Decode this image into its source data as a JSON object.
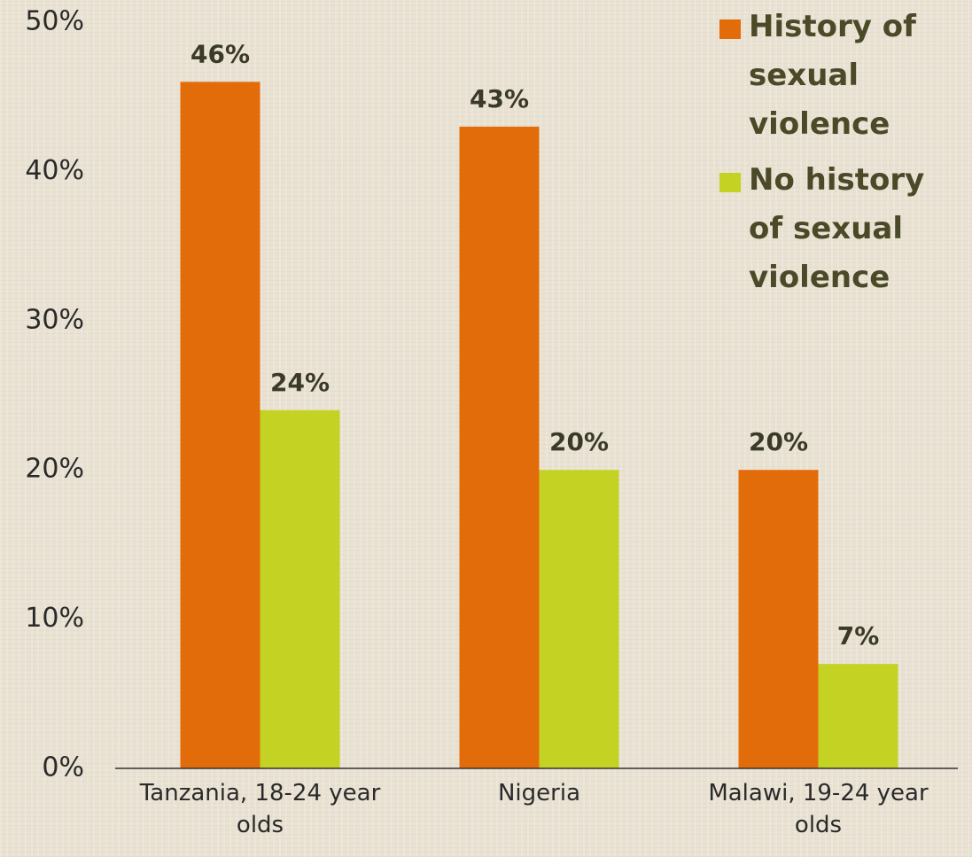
{
  "chart_data": {
    "type": "bar",
    "categories": [
      "Tanzania, 18-24 year olds",
      "Nigeria",
      "Malawi, 19-24 year olds"
    ],
    "series": [
      {
        "name": "History of sexual violence",
        "color": "#e36c0a",
        "values": [
          46,
          43,
          20
        ],
        "value_labels": [
          "46%",
          "43%",
          "20%"
        ]
      },
      {
        "name": "No history of sexual violence",
        "color": "#c4d323",
        "values": [
          24,
          20,
          7
        ],
        "value_labels": [
          "24%",
          "20%",
          "7%"
        ]
      }
    ],
    "ylim": [
      0,
      50
    ],
    "yticks": [
      {
        "value": 0,
        "label": "0%"
      },
      {
        "value": 10,
        "label": "10%"
      },
      {
        "value": 20,
        "label": "20%"
      },
      {
        "value": 30,
        "label": "30%"
      },
      {
        "value": 40,
        "label": "40%"
      },
      {
        "value": 50,
        "label": "50%"
      }
    ],
    "grid": false,
    "legend": "top-right"
  }
}
